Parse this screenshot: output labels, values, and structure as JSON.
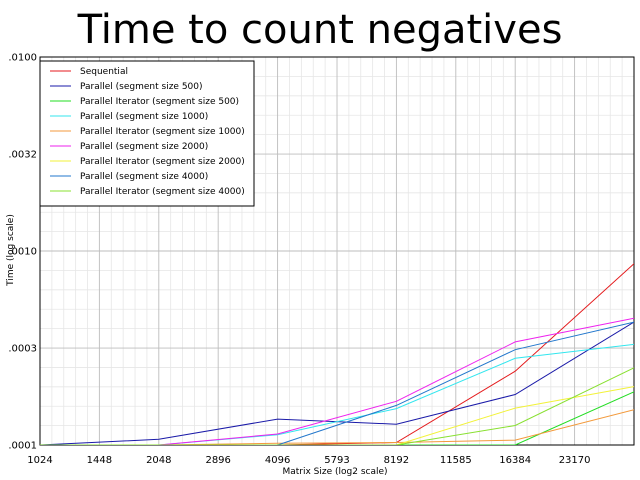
{
  "chart_data": {
    "type": "line",
    "title": "Time to count negatives",
    "xlabel": "Matrix Size (log2 scale)",
    "ylabel": "Time (log scale)",
    "x_scale": "log2",
    "y_scale": "log10",
    "xlim": [
      1024,
      32768
    ],
    "ylim": [
      0.0001,
      0.01
    ],
    "x_ticks": [
      1024,
      1448,
      2048,
      2896,
      4096,
      5793,
      8192,
      11585,
      16384,
      23170
    ],
    "y_tick_values": [
      0.0001,
      0.000316,
      0.001,
      0.00316,
      0.01
    ],
    "y_tick_labels": [
      ".0001",
      ".0003",
      ".0010",
      ".0032",
      ".0100"
    ],
    "grid": true,
    "legend_position": "top-left",
    "x": [
      1024,
      2048,
      4096,
      8192,
      16384,
      32768
    ],
    "series": [
      {
        "name": "Sequential",
        "color": "#e41a1c",
        "values": [
          0.0001,
          0.0001,
          0.0001,
          0.000103,
          0.00024,
          0.00086
        ]
      },
      {
        "name": "Parallel (segment size 500)",
        "color": "#1a1aa8",
        "values": [
          0.0001,
          0.000107,
          0.000136,
          0.000128,
          0.000182,
          0.00043
        ]
      },
      {
        "name": "Parallel Iterator (segment size 500)",
        "color": "#22dd22",
        "values": [
          0.0001,
          0.0001,
          0.0001,
          0.0001,
          0.0001,
          0.000188
        ]
      },
      {
        "name": "Parallel (segment size 1000)",
        "color": "#33e6ee",
        "values": [
          0.0001,
          0.0001,
          0.000113,
          0.000154,
          0.00028,
          0.00033
        ]
      },
      {
        "name": "Parallel Iterator (segment size 1000)",
        "color": "#f39a3c",
        "values": [
          0.0001,
          0.0001,
          0.000102,
          0.000103,
          0.000106,
          0.000152
        ]
      },
      {
        "name": "Parallel (segment size 2000)",
        "color": "#ee22ee",
        "values": [
          0.0001,
          0.0001,
          0.000114,
          0.000168,
          0.00034,
          0.00045
        ]
      },
      {
        "name": "Parallel Iterator (segment size 2000)",
        "color": "#f2f238",
        "values": [
          0.0001,
          0.0001,
          0.0001,
          0.0001,
          0.000155,
          0.0002
        ]
      },
      {
        "name": "Parallel (segment size 4000)",
        "color": "#2277cc",
        "values": [
          0.0001,
          0.0001,
          0.0001,
          0.00016,
          0.00031,
          0.00043
        ]
      },
      {
        "name": "Parallel Iterator (segment size 4000)",
        "color": "#88e030",
        "values": [
          0.0001,
          0.0001,
          0.0001,
          0.0001,
          0.000126,
          0.00025
        ]
      }
    ]
  }
}
